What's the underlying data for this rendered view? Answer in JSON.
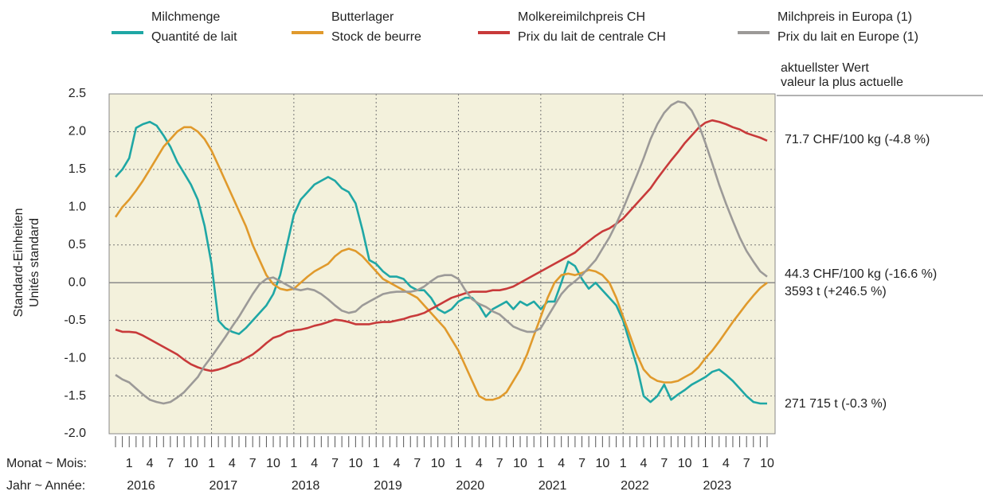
{
  "chart_data": {
    "type": "line",
    "y_label": [
      "Standard-Einheiten",
      "Unités standard"
    ],
    "x_label_month": "Monat ~ Mois:",
    "x_label_year": "Jahr ~ Année:",
    "latest_header": [
      "aktuellster Wert",
      "valeur la plus actuelle"
    ],
    "categories": [
      null,
      null,
      "1",
      null,
      null,
      "4",
      null,
      null,
      "7",
      null,
      null,
      "10",
      null,
      null,
      "1",
      null,
      null,
      "4",
      null,
      null,
      "7",
      null,
      null,
      "10",
      null,
      null,
      "1",
      null,
      null,
      "4",
      null,
      null,
      "7",
      null,
      null,
      "10",
      null,
      null,
      "1",
      null,
      null,
      "4",
      null,
      null,
      "7",
      null,
      null,
      "10",
      null,
      null,
      "1",
      null,
      null,
      "4",
      null,
      null,
      "7",
      null,
      null,
      "10",
      null,
      null,
      "1",
      null,
      null,
      "4",
      null,
      null,
      "7",
      null,
      null,
      "10",
      null,
      null,
      "1",
      null,
      null,
      "4",
      null,
      null,
      "7",
      null,
      null,
      "10",
      null,
      null,
      "1",
      null,
      null,
      "4",
      null,
      null,
      "7",
      null,
      null,
      "10"
    ],
    "year_labels": [
      "2016",
      "2017",
      "2018",
      "2019",
      "2020",
      "2021",
      "2022",
      "2023"
    ],
    "ylim": [
      -2.0,
      2.5
    ],
    "yticks": [
      {
        "value": -2.0,
        "label": "-2.0"
      },
      -1.5,
      {
        "value": -1.0,
        "label": "-1.0"
      },
      -0.5,
      {
        "value": 0.0,
        "label": "0.0"
      },
      0.5,
      {
        "value": 1.0,
        "label": "1.0"
      },
      1.5,
      {
        "value": 2.0,
        "label": "2.0"
      },
      2.5
    ],
    "grid": true,
    "series": [
      {
        "name": "Milchmenge",
        "name_fr": "Quantité de lait",
        "color": "#1fa7a5",
        "latest": "271 715 t (-0.3 %)",
        "values": [
          1.4,
          1.5,
          1.65,
          2.05,
          2.1,
          2.13,
          2.08,
          1.95,
          1.8,
          1.6,
          1.45,
          1.3,
          1.1,
          0.75,
          0.25,
          -0.5,
          -0.6,
          -0.65,
          -0.68,
          -0.6,
          -0.5,
          -0.4,
          -0.3,
          -0.15,
          0.1,
          0.5,
          0.9,
          1.1,
          1.2,
          1.3,
          1.35,
          1.4,
          1.35,
          1.25,
          1.2,
          1.05,
          0.7,
          0.3,
          0.25,
          0.15,
          0.08,
          0.08,
          0.05,
          -0.05,
          -0.1,
          -0.1,
          -0.2,
          -0.35,
          -0.4,
          -0.35,
          -0.25,
          -0.2,
          -0.2,
          -0.3,
          -0.45,
          -0.35,
          -0.3,
          -0.25,
          -0.35,
          -0.25,
          -0.3,
          -0.25,
          -0.35,
          -0.25,
          -0.25,
          0.0,
          0.28,
          0.22,
          0.05,
          -0.08,
          0.0,
          -0.1,
          -0.2,
          -0.3,
          -0.5,
          -0.8,
          -1.1,
          -1.5,
          -1.58,
          -1.5,
          -1.35,
          -1.55,
          -1.48,
          -1.42,
          -1.35,
          -1.3,
          -1.25,
          -1.18,
          -1.15,
          -1.22,
          -1.3,
          -1.4,
          -1.5,
          -1.58,
          -1.6,
          -1.6
        ]
      },
      {
        "name": "Butterlager",
        "name_fr": "Stock de beurre",
        "color": "#e09a2c",
        "latest": "3593 t (+246.5 %)",
        "values": [
          0.87,
          1.0,
          1.1,
          1.22,
          1.35,
          1.5,
          1.65,
          1.8,
          1.9,
          2.0,
          2.06,
          2.06,
          2.0,
          1.9,
          1.75,
          1.55,
          1.35,
          1.15,
          0.95,
          0.75,
          0.5,
          0.3,
          0.1,
          -0.02,
          -0.08,
          -0.1,
          -0.08,
          0.0,
          0.08,
          0.15,
          0.2,
          0.25,
          0.35,
          0.42,
          0.45,
          0.42,
          0.35,
          0.25,
          0.15,
          0.05,
          0.0,
          -0.05,
          -0.1,
          -0.15,
          -0.2,
          -0.3,
          -0.4,
          -0.5,
          -0.6,
          -0.75,
          -0.9,
          -1.1,
          -1.3,
          -1.5,
          -1.55,
          -1.55,
          -1.52,
          -1.45,
          -1.3,
          -1.15,
          -0.95,
          -0.7,
          -0.45,
          -0.2,
          0.0,
          0.1,
          0.12,
          0.1,
          0.13,
          0.17,
          0.15,
          0.1,
          0.0,
          -0.2,
          -0.45,
          -0.7,
          -0.95,
          -1.15,
          -1.25,
          -1.3,
          -1.32,
          -1.32,
          -1.3,
          -1.25,
          -1.2,
          -1.12,
          -1.0,
          -0.9,
          -0.78,
          -0.65,
          -0.52,
          -0.4,
          -0.28,
          -0.17,
          -0.07,
          0.0
        ]
      },
      {
        "name": "Molkereimilchpreis CH",
        "name_fr": "Prix du lait de centrale CH",
        "color": "#c83a3a",
        "latest": "71.7 CHF/100 kg (-4.8 %)",
        "values": [
          -0.62,
          -0.65,
          -0.65,
          -0.66,
          -0.7,
          -0.75,
          -0.8,
          -0.85,
          -0.9,
          -0.95,
          -1.02,
          -1.08,
          -1.12,
          -1.15,
          -1.17,
          -1.15,
          -1.12,
          -1.08,
          -1.05,
          -1.0,
          -0.95,
          -0.88,
          -0.8,
          -0.73,
          -0.7,
          -0.65,
          -0.63,
          -0.62,
          -0.6,
          -0.57,
          -0.55,
          -0.52,
          -0.49,
          -0.5,
          -0.52,
          -0.55,
          -0.55,
          -0.55,
          -0.53,
          -0.52,
          -0.52,
          -0.5,
          -0.48,
          -0.45,
          -0.43,
          -0.4,
          -0.35,
          -0.3,
          -0.25,
          -0.2,
          -0.17,
          -0.14,
          -0.12,
          -0.12,
          -0.12,
          -0.1,
          -0.1,
          -0.08,
          -0.05,
          0.0,
          0.05,
          0.1,
          0.15,
          0.2,
          0.25,
          0.3,
          0.35,
          0.4,
          0.48,
          0.55,
          0.62,
          0.68,
          0.72,
          0.78,
          0.85,
          0.95,
          1.05,
          1.15,
          1.25,
          1.38,
          1.5,
          1.62,
          1.73,
          1.85,
          1.95,
          2.05,
          2.12,
          2.15,
          2.13,
          2.1,
          2.06,
          2.03,
          1.98,
          1.95,
          1.92,
          1.88
        ]
      },
      {
        "name": "Milchpreis in Europa (1)",
        "name_fr": "Prix du lait en Europe (1)",
        "color": "#9c9a98",
        "latest": "44.3 CHF/100 kg (-16.6 %)",
        "values": [
          -1.22,
          -1.28,
          -1.32,
          -1.4,
          -1.48,
          -1.55,
          -1.58,
          -1.6,
          -1.58,
          -1.52,
          -1.45,
          -1.35,
          -1.25,
          -1.1,
          -0.98,
          -0.85,
          -0.72,
          -0.58,
          -0.45,
          -0.3,
          -0.15,
          -0.02,
          0.05,
          0.07,
          0.02,
          -0.03,
          -0.08,
          -0.1,
          -0.08,
          -0.1,
          -0.15,
          -0.22,
          -0.3,
          -0.37,
          -0.4,
          -0.38,
          -0.3,
          -0.25,
          -0.2,
          -0.15,
          -0.13,
          -0.12,
          -0.12,
          -0.12,
          -0.1,
          -0.05,
          0.02,
          0.08,
          0.1,
          0.1,
          0.05,
          -0.1,
          -0.22,
          -0.28,
          -0.32,
          -0.38,
          -0.42,
          -0.5,
          -0.58,
          -0.62,
          -0.65,
          -0.65,
          -0.6,
          -0.45,
          -0.3,
          -0.15,
          -0.05,
          0.02,
          0.1,
          0.2,
          0.3,
          0.45,
          0.6,
          0.78,
          0.98,
          1.2,
          1.42,
          1.65,
          1.9,
          2.1,
          2.25,
          2.35,
          2.4,
          2.38,
          2.28,
          2.1,
          1.85,
          1.58,
          1.3,
          1.05,
          0.82,
          0.6,
          0.42,
          0.28,
          0.15,
          0.08
        ]
      }
    ]
  }
}
